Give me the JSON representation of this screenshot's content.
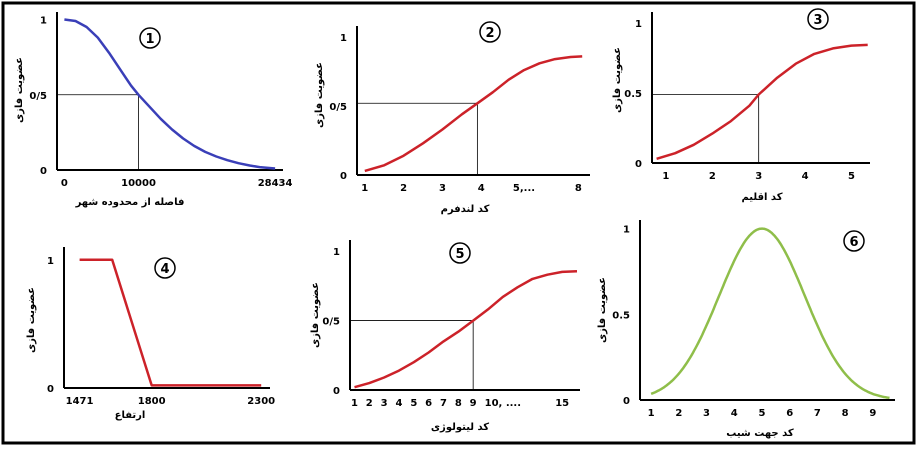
{
  "figure": {
    "colors": {
      "border": "#000000",
      "axis": "#000000",
      "guide": "#000000"
    }
  },
  "chart_data": [
    {
      "id": "1",
      "type": "line",
      "number_label": "1",
      "xlabel": "فاصله از محدوده شهر",
      "ylabel": "عضویت فازی",
      "xticks": [
        {
          "v": 0,
          "t": "0"
        },
        {
          "v": 10000,
          "t": "10000"
        },
        {
          "v": 28434,
          "t": "28434"
        }
      ],
      "yticks": [
        {
          "v": 0,
          "t": "0"
        },
        {
          "v": 0.5,
          "t": "0/5"
        },
        {
          "v": 1,
          "t": "1"
        }
      ],
      "xlim": [
        -1000,
        29500
      ],
      "ylim": [
        0,
        1.05
      ],
      "series": [
        {
          "color": "#3a3fb8",
          "x": [
            0,
            1500,
            3000,
            4500,
            6000,
            7500,
            9000,
            10000,
            11500,
            13000,
            14500,
            16000,
            17500,
            19000,
            20500,
            22000,
            23500,
            25000,
            26500,
            28434
          ],
          "y": [
            1,
            0.99,
            0.95,
            0.88,
            0.78,
            0.67,
            0.56,
            0.5,
            0.42,
            0.34,
            0.27,
            0.21,
            0.16,
            0.12,
            0.09,
            0.065,
            0.045,
            0.03,
            0.018,
            0.01
          ]
        }
      ],
      "guide": {
        "x": 10000,
        "y": 0.5
      }
    },
    {
      "id": "2",
      "type": "line",
      "number_label": "2",
      "xlabel": "کد لندفرم",
      "ylabel": "عضویت فازی",
      "xticks": [
        {
          "v": 1,
          "t": "1"
        },
        {
          "v": 2,
          "t": "2"
        },
        {
          "v": 3,
          "t": "3"
        },
        {
          "v": 4,
          "t": "4"
        },
        {
          "v": 5.1,
          "t": "5,..."
        },
        {
          "v": 6.5,
          "t": "8"
        }
      ],
      "yticks": [
        {
          "v": 0,
          "t": "0"
        },
        {
          "v": 0.5,
          "t": "0/5"
        },
        {
          "v": 1,
          "t": "1"
        }
      ],
      "xlim": [
        0.8,
        6.8
      ],
      "ylim": [
        0,
        1.08
      ],
      "series": [
        {
          "color": "#cc2229",
          "x": [
            1,
            1.5,
            2,
            2.5,
            3,
            3.5,
            3.9,
            4.3,
            4.7,
            5.1,
            5.5,
            5.9,
            6.3,
            6.6
          ],
          "y": [
            0.03,
            0.07,
            0.14,
            0.23,
            0.33,
            0.44,
            0.52,
            0.6,
            0.69,
            0.76,
            0.81,
            0.84,
            0.855,
            0.86
          ]
        }
      ],
      "guide": {
        "x": 3.9,
        "y": 0.52
      }
    },
    {
      "id": "3",
      "type": "line",
      "number_label": "3",
      "xlabel": "کد اقلیم",
      "ylabel": "عضویت فازی",
      "xticks": [
        {
          "v": 1,
          "t": "1"
        },
        {
          "v": 2,
          "t": "2"
        },
        {
          "v": 3,
          "t": "3"
        },
        {
          "v": 4,
          "t": "4"
        },
        {
          "v": 5,
          "t": "5"
        }
      ],
      "yticks": [
        {
          "v": 0,
          "t": "0"
        },
        {
          "v": 0.5,
          "t": "0.5"
        },
        {
          "v": 1,
          "t": "1"
        }
      ],
      "xlim": [
        0.7,
        5.4
      ],
      "ylim": [
        0,
        1.08
      ],
      "series": [
        {
          "color": "#cc2229",
          "x": [
            0.8,
            1.2,
            1.6,
            2,
            2.4,
            2.8,
            3,
            3.4,
            3.8,
            4.2,
            4.6,
            5,
            5.35
          ],
          "y": [
            0.03,
            0.07,
            0.13,
            0.21,
            0.3,
            0.41,
            0.49,
            0.61,
            0.71,
            0.78,
            0.82,
            0.84,
            0.845
          ]
        }
      ],
      "guide": {
        "x": 3,
        "y": 0.49
      }
    },
    {
      "id": "4",
      "type": "line",
      "number_label": "4",
      "xlabel": "ارتفاع",
      "ylabel": "عضویت فازی",
      "xticks": [
        {
          "v": 1471,
          "t": "1471"
        },
        {
          "v": 1800,
          "t": "1800"
        },
        {
          "v": 2300,
          "t": "2300"
        }
      ],
      "yticks": [
        {
          "v": 0,
          "t": "0"
        },
        {
          "v": 1,
          "t": "1"
        }
      ],
      "xlim": [
        1400,
        2340
      ],
      "ylim": [
        0,
        1.1
      ],
      "series": [
        {
          "color": "#cc2229",
          "x": [
            1471,
            1620,
            1800,
            2300
          ],
          "y": [
            1,
            1,
            0.02,
            0.02
          ]
        }
      ]
    },
    {
      "id": "5",
      "type": "line",
      "number_label": "5",
      "xlabel": "کد لیتولوژی",
      "ylabel": "عضویت فازی",
      "xticks": [
        {
          "v": 1,
          "t": "1"
        },
        {
          "v": 2,
          "t": "2"
        },
        {
          "v": 3,
          "t": "3"
        },
        {
          "v": 4,
          "t": "4"
        },
        {
          "v": 5,
          "t": "5"
        },
        {
          "v": 6,
          "t": "6"
        },
        {
          "v": 7,
          "t": "7"
        },
        {
          "v": 8,
          "t": "8"
        },
        {
          "v": 9,
          "t": "9"
        },
        {
          "v": 11,
          "t": "10, ...."
        },
        {
          "v": 15,
          "t": "15"
        }
      ],
      "yticks": [
        {
          "v": 0,
          "t": "0"
        },
        {
          "v": 0.5,
          "t": "0/5"
        },
        {
          "v": 1,
          "t": "1"
        }
      ],
      "xlim": [
        0.7,
        16.2
      ],
      "ylim": [
        0,
        1.08
      ],
      "series": [
        {
          "color": "#cc2229",
          "x": [
            1,
            2,
            3,
            4,
            5,
            6,
            7,
            8,
            9,
            10,
            11,
            12,
            13,
            14,
            15,
            16
          ],
          "y": [
            0.02,
            0.05,
            0.09,
            0.14,
            0.2,
            0.27,
            0.35,
            0.42,
            0.5,
            0.58,
            0.67,
            0.74,
            0.8,
            0.83,
            0.85,
            0.855
          ]
        }
      ],
      "guide": {
        "x": 9,
        "y": 0.5
      }
    },
    {
      "id": "6",
      "type": "line",
      "number_label": "6",
      "xlabel": "کد جهت شیب",
      "ylabel": "عضویت فازی",
      "xticks": [
        {
          "v": 1,
          "t": "1"
        },
        {
          "v": 2,
          "t": "2"
        },
        {
          "v": 3,
          "t": "3"
        },
        {
          "v": 4,
          "t": "4"
        },
        {
          "v": 5,
          "t": "5"
        },
        {
          "v": 6,
          "t": "6"
        },
        {
          "v": 7,
          "t": "7"
        },
        {
          "v": 8,
          "t": "8"
        },
        {
          "v": 9,
          "t": "9"
        }
      ],
      "yticks": [
        {
          "v": 0,
          "t": "0"
        },
        {
          "v": 0.5,
          "t": "0.5"
        },
        {
          "v": 1,
          "t": "1"
        }
      ],
      "xlim": [
        0.6,
        9.8
      ],
      "ylim": [
        0,
        1.05
      ],
      "series": [
        {
          "color": "#8fbe4a",
          "mean": 5,
          "sd": 1.55,
          "x_range": [
            1,
            9.6
          ]
        }
      ]
    }
  ]
}
